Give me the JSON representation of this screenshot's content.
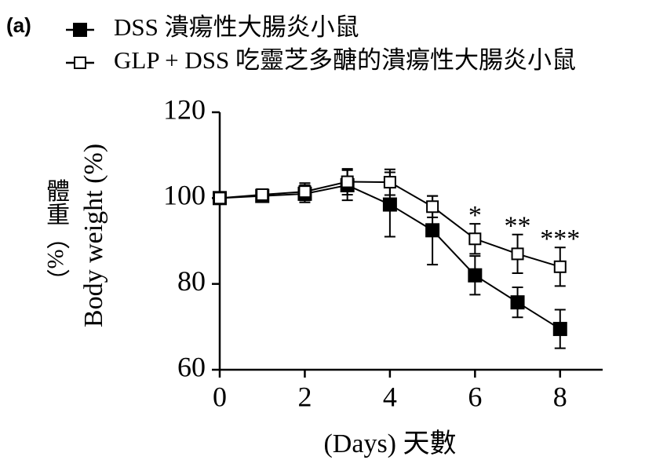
{
  "chart_data": {
    "type": "line",
    "panel_label": "(a)",
    "xlabel": "(Days) 天數",
    "ylabel": "Body weight (%)",
    "ylabel_zh": "體重（%）",
    "x": [
      0,
      1,
      2,
      3,
      4,
      5,
      6,
      7,
      8
    ],
    "xlim": [
      0,
      9
    ],
    "xticks": [
      0,
      2,
      4,
      6,
      8
    ],
    "ylim": [
      60,
      120
    ],
    "yticks": [
      60,
      80,
      100,
      120
    ],
    "series": [
      {
        "name": "DSS 潰瘍性大腸炎小鼠",
        "color": "#000000",
        "marker": "filled-square",
        "values": [
          100,
          100.5,
          101,
          103,
          98.5,
          92.5,
          82,
          75.7,
          69.5
        ],
        "errors": [
          0.5,
          1,
          2,
          3.5,
          7.5,
          8,
          4.5,
          3.5,
          4.5
        ]
      },
      {
        "name": "GLP + DSS 吃靈芝多醣的潰瘍性大腸炎小鼠",
        "color": "#000000",
        "marker": "open-square",
        "values": [
          100,
          100.8,
          101.5,
          103.8,
          103.7,
          98,
          90.5,
          87,
          84
        ],
        "errors": [
          0.5,
          1,
          2,
          3,
          3,
          2.5,
          3.5,
          4.5,
          4.5
        ]
      }
    ],
    "annotations": [
      {
        "text": "*",
        "x": 6
      },
      {
        "text": "**",
        "x": 7
      },
      {
        "text": "***",
        "x": 8
      }
    ]
  }
}
